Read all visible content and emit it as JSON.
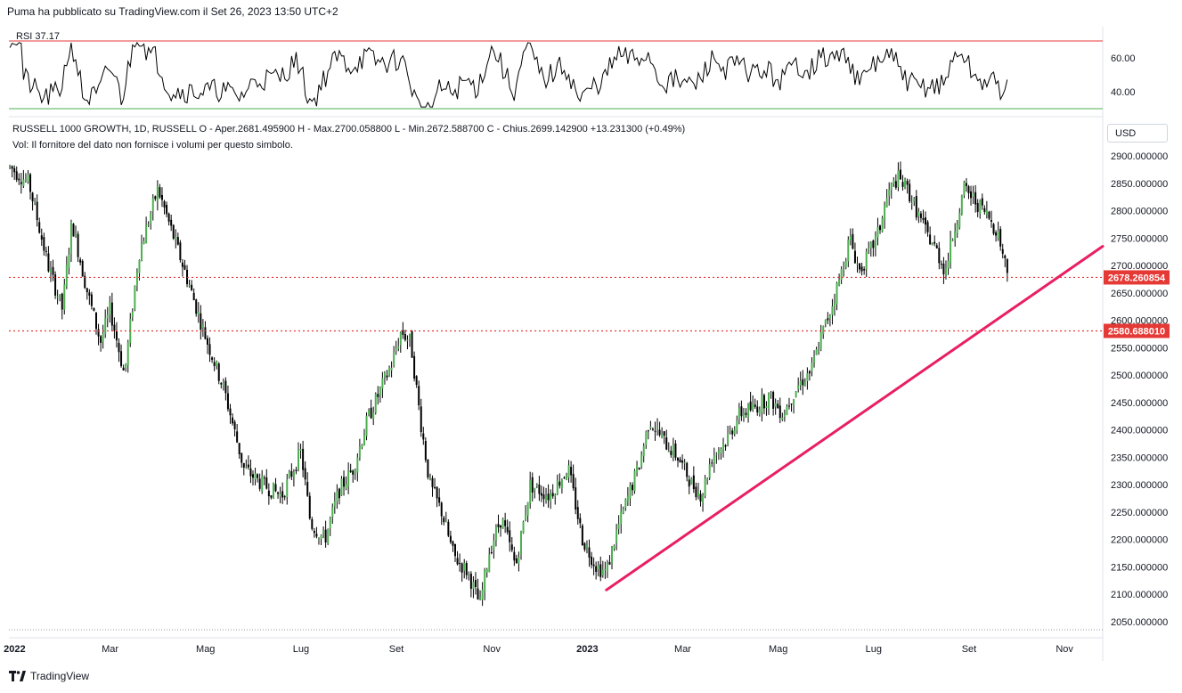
{
  "header": {
    "published": "Puma ha pubblicato su TradingView.com il Set 26, 2023 13:50 UTC+2"
  },
  "footer": {
    "brand": "TradingView",
    "logo_icon": "tradingview-logo-icon"
  },
  "legend": {
    "line1": "RUSSELL 1000 GROWTH, 1D, RUSSELL  O - Aper.2681.495900  H - Max.2700.058800  L - Min.2672.588700  C - Chius.2699.142900  +13.231300 (+0.49%)",
    "line2": "Vol: Il fornitore del dato non fornisce i volumi per questo simbolo.",
    "currency": "USD"
  },
  "rsi": {
    "label": "RSI",
    "value": "37.17",
    "ticks": [
      "60.00",
      "40.00"
    ],
    "upper_band": 70,
    "lower_band": 30,
    "colors": {
      "line": "#000000",
      "upper": "#e53935",
      "lower": "#4caf50"
    }
  },
  "chart_data": {
    "type": "candlestick",
    "symbol": "RUSSELL 1000 GROWTH",
    "timeframe": "1D",
    "ylim": [
      2030,
      2920
    ],
    "y_ticks": [
      "2900.000000",
      "2850.000000",
      "2800.000000",
      "2750.000000",
      "2700.000000",
      "2650.000000",
      "2600.000000",
      "2550.000000",
      "2500.000000",
      "2450.000000",
      "2400.000000",
      "2350.000000",
      "2300.000000",
      "2250.000000",
      "2200.000000",
      "2150.000000",
      "2100.000000",
      "2050.000000"
    ],
    "x_ticks": [
      "2022",
      "Mar",
      "Mag",
      "Lug",
      "Set",
      "Nov",
      "2023",
      "Mar",
      "Mag",
      "Lug",
      "Set",
      "Nov"
    ],
    "x_tick_bold": [
      true,
      false,
      false,
      false,
      false,
      false,
      true,
      false,
      false,
      false,
      false,
      false
    ],
    "x_tick_time": [
      0,
      2,
      4,
      6,
      8,
      10,
      12,
      14,
      16,
      18,
      20,
      22
    ],
    "time_range": [
      -0.12,
      22.8
    ],
    "price_path": [
      [
        -0.1,
        2880
      ],
      [
        0.3,
        2850
      ],
      [
        0.7,
        2700
      ],
      [
        1.0,
        2620
      ],
      [
        1.2,
        2780
      ],
      [
        1.5,
        2660
      ],
      [
        1.8,
        2560
      ],
      [
        2.0,
        2620
      ],
      [
        2.3,
        2500
      ],
      [
        2.6,
        2720
      ],
      [
        3.0,
        2840
      ],
      [
        3.3,
        2760
      ],
      [
        3.6,
        2680
      ],
      [
        4.0,
        2570
      ],
      [
        4.4,
        2470
      ],
      [
        4.8,
        2330
      ],
      [
        5.2,
        2300
      ],
      [
        5.6,
        2280
      ],
      [
        6.0,
        2360
      ],
      [
        6.2,
        2230
      ],
      [
        6.5,
        2200
      ],
      [
        6.8,
        2290
      ],
      [
        7.1,
        2330
      ],
      [
        7.4,
        2420
      ],
      [
        7.7,
        2480
      ],
      [
        7.9,
        2520
      ],
      [
        8.1,
        2580
      ],
      [
        8.3,
        2560
      ],
      [
        8.5,
        2420
      ],
      [
        8.7,
        2300
      ],
      [
        8.95,
        2250
      ],
      [
        9.2,
        2170
      ],
      [
        9.5,
        2140
      ],
      [
        9.75,
        2080
      ],
      [
        9.95,
        2180
      ],
      [
        10.2,
        2240
      ],
      [
        10.5,
        2150
      ],
      [
        10.8,
        2300
      ],
      [
        11.2,
        2280
      ],
      [
        11.6,
        2330
      ],
      [
        11.9,
        2200
      ],
      [
        12.2,
        2150
      ],
      [
        12.4,
        2140
      ],
      [
        12.6,
        2210
      ],
      [
        12.9,
        2290
      ],
      [
        13.1,
        2340
      ],
      [
        13.3,
        2420
      ],
      [
        13.6,
        2380
      ],
      [
        13.9,
        2350
      ],
      [
        14.2,
        2300
      ],
      [
        14.4,
        2280
      ],
      [
        14.6,
        2350
      ],
      [
        14.9,
        2380
      ],
      [
        15.2,
        2430
      ],
      [
        15.5,
        2440
      ],
      [
        15.8,
        2460
      ],
      [
        16.1,
        2430
      ],
      [
        16.4,
        2480
      ],
      [
        16.7,
        2510
      ],
      [
        16.9,
        2570
      ],
      [
        17.1,
        2620
      ],
      [
        17.3,
        2680
      ],
      [
        17.5,
        2750
      ],
      [
        17.7,
        2690
      ],
      [
        17.9,
        2720
      ],
      [
        18.1,
        2760
      ],
      [
        18.3,
        2830
      ],
      [
        18.5,
        2860
      ],
      [
        18.7,
        2840
      ],
      [
        18.9,
        2800
      ],
      [
        19.1,
        2760
      ],
      [
        19.3,
        2730
      ],
      [
        19.5,
        2690
      ],
      [
        19.7,
        2770
      ],
      [
        19.9,
        2840
      ],
      [
        20.2,
        2810
      ],
      [
        20.4,
        2790
      ],
      [
        20.6,
        2760
      ],
      [
        20.8,
        2690
      ]
    ]
  },
  "levels": [
    {
      "value": 2678.260854,
      "label": "2678.260854",
      "color": "#e53935"
    },
    {
      "value": 2580.68801,
      "label": "2580.688010",
      "color": "#e53935"
    }
  ],
  "trendline": {
    "from": [
      12.4,
      2108
    ],
    "to": [
      22.8,
      2735
    ],
    "color": "#e91e63"
  },
  "colors": {
    "up": "#4caf50",
    "down": "#000000",
    "grid": "#f0f3fa",
    "axis": "#131722"
  }
}
